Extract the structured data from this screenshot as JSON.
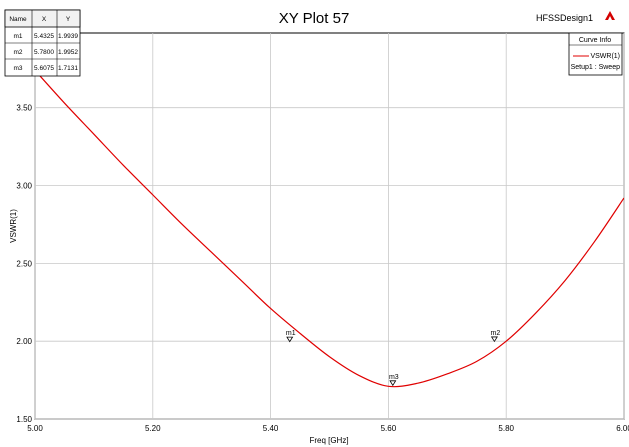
{
  "header": {
    "title": "XY Plot 57",
    "design_name": "HFSSDesign1",
    "logo_text": "ANSOFT"
  },
  "legend": {
    "header": "Curve Info",
    "entry": "VSWR(1)",
    "sub_entry": "Setup1 : Sweep"
  },
  "marker_table": {
    "columns": [
      "Name",
      "X",
      "Y"
    ],
    "rows": [
      [
        "m1",
        "5.4325",
        "1.9939"
      ],
      [
        "m2",
        "5.7800",
        "1.9952"
      ],
      [
        "m3",
        "5.6075",
        "1.7131"
      ]
    ]
  },
  "chart_data": {
    "type": "line",
    "xlabel": "Freq [GHz]",
    "ylabel": "VSWR(1)",
    "xlim": [
      5.0,
      6.0
    ],
    "ylim": [
      1.5,
      3.98
    ],
    "x_ticks": [
      "5.00",
      "5.20",
      "5.40",
      "5.60",
      "5.80",
      "6.00"
    ],
    "y_ticks": [
      "1.50",
      "2.00",
      "2.50",
      "3.00",
      "3.50"
    ],
    "grid": true,
    "series": [
      {
        "name": "VSWR(1)",
        "color": "#e00000",
        "x": [
          5.0,
          5.05,
          5.1,
          5.15,
          5.2,
          5.25,
          5.3,
          5.35,
          5.4,
          5.45,
          5.5,
          5.55,
          5.6,
          5.65,
          5.7,
          5.75,
          5.8,
          5.85,
          5.9,
          5.95,
          6.0
        ],
        "y": [
          3.74,
          3.53,
          3.33,
          3.13,
          2.94,
          2.75,
          2.57,
          2.39,
          2.21,
          2.05,
          1.9,
          1.78,
          1.71,
          1.73,
          1.79,
          1.87,
          2.0,
          2.18,
          2.39,
          2.64,
          2.92
        ]
      }
    ],
    "markers": [
      {
        "name": "m1",
        "x": 5.4325,
        "y": 1.9939
      },
      {
        "name": "m2",
        "x": 5.78,
        "y": 1.9952
      },
      {
        "name": "m3",
        "x": 5.6075,
        "y": 1.7131
      }
    ]
  }
}
